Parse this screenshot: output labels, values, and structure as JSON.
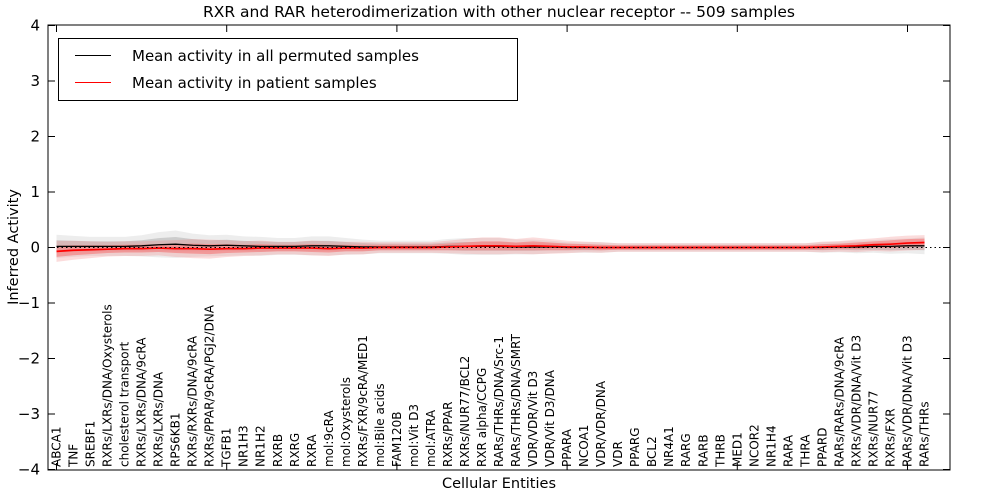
{
  "chart_data": {
    "type": "line",
    "title": "RXR and RAR heterodimerization with other nuclear receptor -- 509 samples",
    "xlabel": "Cellular Entities",
    "ylabel": "Inferred Activity",
    "ylim": [
      -4,
      4
    ],
    "yticks": [
      -4,
      -3,
      -2,
      -1,
      0,
      1,
      2,
      3,
      4
    ],
    "grid": false,
    "zero_line": "dotted",
    "legend_position": "upper left",
    "categories": [
      "ABCA1",
      "TNF",
      "SREBF1",
      "RXRs/LXRs/DNA/Oxysterols",
      "cholesterol transport",
      "RXRs/LXRs/DNA/9cRA",
      "RXRs/LXRs/DNA",
      "RPS6KB1",
      "RXRs/RXRs/DNA/9cRA",
      "RXRs/PPAR/9cRA/PGJ2/DNA",
      "TGFB1",
      "NR1H3",
      "NR1H2",
      "RXRB",
      "RXRG",
      "RXRA",
      "mol:9cRA",
      "mol:Oxysterols",
      "RXRs/FXR/9cRA/MED1",
      "mol:Bile acids",
      "FAM120B",
      "mol:Vit D3",
      "mol:ATRA",
      "RXRs/PPAR",
      "RXRs/NUR77/BCL2",
      "RXR alpha/CCPG",
      "RARs/THRs/DNA/Src-1",
      "RARs/THRs/DNA/SMRT",
      "VDR/VDR/Vit D3",
      "VDR/Vit D3/DNA",
      "PPARA",
      "NCOA1",
      "VDR/VDR/DNA",
      "VDR",
      "PPARG",
      "BCL2",
      "NR4A1",
      "RARG",
      "RARB",
      "THRB",
      "MED1",
      "NCOR2",
      "NR1H4",
      "RARA",
      "THRA",
      "PPARD",
      "RARs/RARs/DNA/9cRA",
      "RXRs/VDR/DNA/Vit D3",
      "RXRs/NUR77",
      "RXRs/FXR",
      "RARs/VDR/DNA/Vit D3",
      "RARs/THRs"
    ],
    "series": [
      {
        "name": "Mean activity in all permuted samples",
        "color": "#000000",
        "band_color": "#c3c3c3",
        "values": [
          0.02,
          0.02,
          0.02,
          0.02,
          0.02,
          0.03,
          0.05,
          0.06,
          0.04,
          0.03,
          0.04,
          0.03,
          0.02,
          0.02,
          0.02,
          0.03,
          0.03,
          0.02,
          0.01,
          0.01,
          0.01,
          0.01,
          0.01,
          0.02,
          0.02,
          0.02,
          0.02,
          0.01,
          0.01,
          0.01,
          0.0,
          0.0,
          0.0,
          0.0,
          0.0,
          0.0,
          0.0,
          0.0,
          0.0,
          0.0,
          0.0,
          0.0,
          0.0,
          0.0,
          0.0,
          0.0,
          0.01,
          0.01,
          0.02,
          0.02,
          0.03,
          0.03
        ],
        "band_halfwidth": [
          0.11,
          0.1,
          0.09,
          0.09,
          0.09,
          0.1,
          0.12,
          0.13,
          0.11,
          0.1,
          0.1,
          0.09,
          0.09,
          0.08,
          0.08,
          0.09,
          0.09,
          0.08,
          0.07,
          0.06,
          0.06,
          0.06,
          0.06,
          0.07,
          0.08,
          0.08,
          0.08,
          0.07,
          0.07,
          0.06,
          0.05,
          0.05,
          0.05,
          0.04,
          0.04,
          0.04,
          0.04,
          0.04,
          0.04,
          0.04,
          0.04,
          0.04,
          0.04,
          0.04,
          0.04,
          0.05,
          0.05,
          0.06,
          0.06,
          0.07,
          0.07,
          0.08
        ]
      },
      {
        "name": "Mean activity in patient samples",
        "color": "#ff0000",
        "band_color": "#f28b8b",
        "values": [
          -0.07,
          -0.05,
          -0.04,
          -0.03,
          -0.02,
          -0.02,
          -0.01,
          -0.02,
          -0.02,
          -0.03,
          -0.02,
          -0.02,
          -0.01,
          -0.01,
          -0.01,
          -0.01,
          -0.02,
          -0.01,
          -0.01,
          0.0,
          0.0,
          0.0,
          0.0,
          0.01,
          0.02,
          0.03,
          0.03,
          0.02,
          0.03,
          0.02,
          0.01,
          0.01,
          0.0,
          0.0,
          0.0,
          0.0,
          0.0,
          0.0,
          0.0,
          0.0,
          0.0,
          0.0,
          0.0,
          0.0,
          0.0,
          0.01,
          0.02,
          0.03,
          0.05,
          0.06,
          0.08,
          0.09
        ],
        "band_halfwidth": [
          0.1,
          0.09,
          0.08,
          0.07,
          0.07,
          0.07,
          0.07,
          0.08,
          0.09,
          0.09,
          0.08,
          0.07,
          0.07,
          0.06,
          0.06,
          0.07,
          0.07,
          0.06,
          0.06,
          0.05,
          0.05,
          0.05,
          0.05,
          0.06,
          0.07,
          0.08,
          0.08,
          0.07,
          0.08,
          0.07,
          0.06,
          0.05,
          0.05,
          0.04,
          0.04,
          0.04,
          0.04,
          0.04,
          0.04,
          0.04,
          0.04,
          0.04,
          0.04,
          0.04,
          0.04,
          0.05,
          0.05,
          0.06,
          0.06,
          0.07,
          0.07,
          0.07
        ]
      }
    ]
  }
}
